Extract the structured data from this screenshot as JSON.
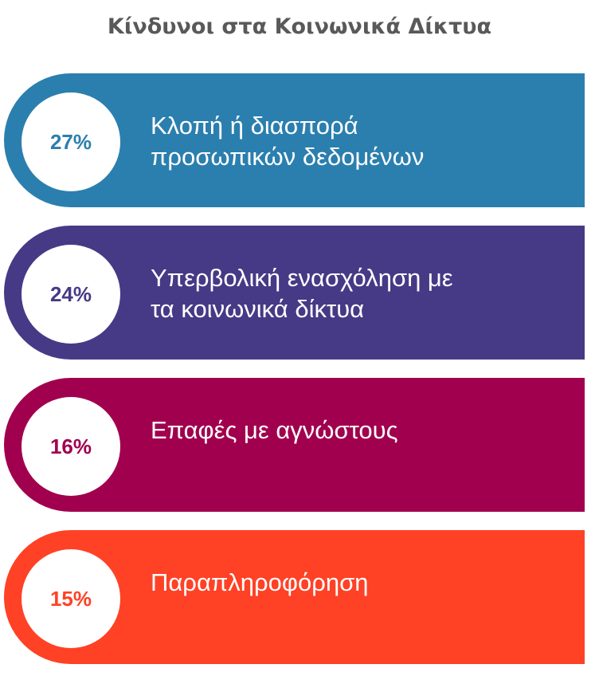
{
  "chart_data": {
    "type": "bar",
    "title": "Κίνδυνοι στα Κοινωνικά Δίκτυα",
    "categories": [
      "Κλοπή ή διασπορά\nπροσωπικών δεδομένων",
      "Υπερβολική ενασχόληση με\nτα κοινωνικά δίκτυα",
      "Επαφές με αγνώστους",
      "Παραπληροφόρηση"
    ],
    "values": [
      27,
      24,
      16,
      15
    ],
    "value_labels": [
      "27%",
      "24%",
      "16%",
      "15%"
    ],
    "colors": [
      "#2B7FAE",
      "#463A86",
      "#A1004E",
      "#FF4125"
    ]
  }
}
